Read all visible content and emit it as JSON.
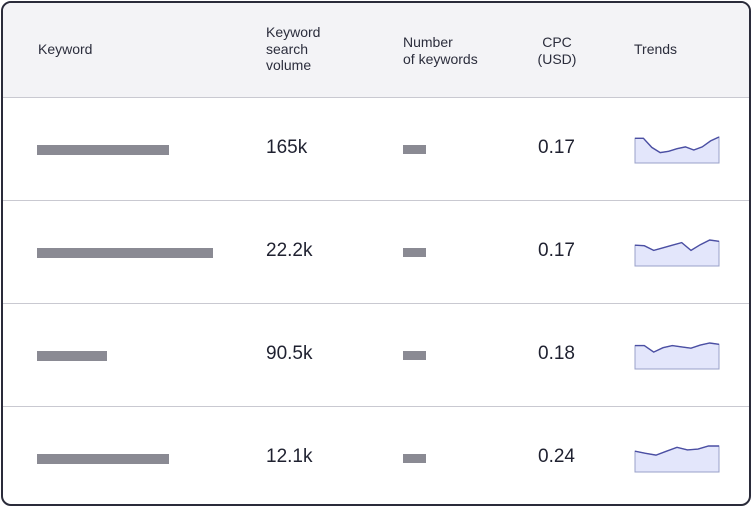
{
  "table": {
    "headers": {
      "keyword": "Keyword",
      "volume": [
        "Keyword",
        "search",
        "volume"
      ],
      "number": [
        "Number",
        "of keywords"
      ],
      "cpc": [
        "CPC",
        "(USD)"
      ],
      "trends": "Trends"
    },
    "rows": [
      {
        "keyword_placeholder_fraction": 0.75,
        "volume": "165k",
        "cpc": "0.17",
        "trend": [
          0.95,
          0.95,
          0.6,
          0.4,
          0.45,
          0.55,
          0.62,
          0.5,
          0.62,
          0.85,
          1.0
        ]
      },
      {
        "keyword_placeholder_fraction": 1.0,
        "volume": "22.2k",
        "cpc": "0.17",
        "trend": [
          0.8,
          0.78,
          0.6,
          0.7,
          0.8,
          0.9,
          0.6,
          0.82,
          1.0,
          0.95
        ]
      },
      {
        "keyword_placeholder_fraction": 0.4,
        "volume": "90.5k",
        "cpc": "0.18",
        "trend": [
          0.9,
          0.9,
          0.65,
          0.82,
          0.9,
          0.85,
          0.8,
          0.92,
          1.0,
          0.95
        ]
      },
      {
        "keyword_placeholder_fraction": 0.75,
        "volume": "12.1k",
        "cpc": "0.24",
        "trend": [
          0.8,
          0.72,
          0.65,
          0.8,
          0.95,
          0.85,
          0.88,
          1.0,
          1.0
        ]
      }
    ]
  },
  "colors": {
    "placeholder_bar": "#8a8a93",
    "trend_line": "#4b4fa3",
    "trend_fill": "#e3e6fb"
  }
}
